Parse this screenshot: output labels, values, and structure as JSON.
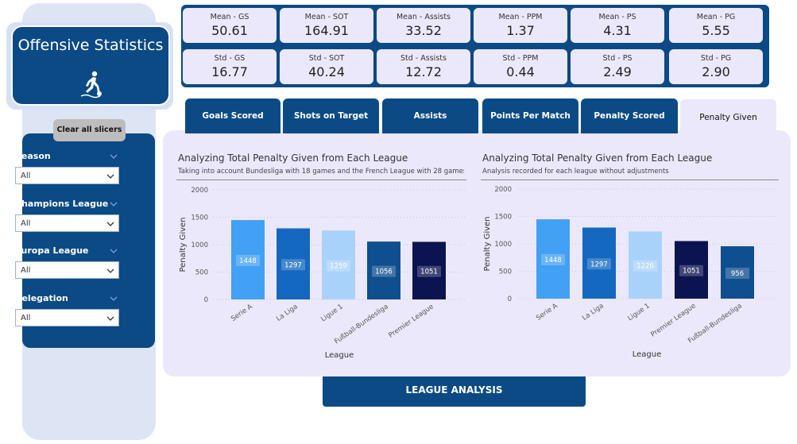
{
  "sidebar": {
    "title": "Offensive Statistics",
    "title_icon": "soccer-player-icon",
    "clear_button": "Clear all slicers",
    "slicers": [
      {
        "label": "Season",
        "value": "All"
      },
      {
        "label": "Champions League",
        "value": "All"
      },
      {
        "label": "Europa League",
        "value": "All"
      },
      {
        "label": "Relegation",
        "value": "All"
      }
    ]
  },
  "kpis": {
    "means": [
      {
        "label": "Mean - GS",
        "value": "50.61"
      },
      {
        "label": "Mean - SOT",
        "value": "164.91"
      },
      {
        "label": "Mean - Assists",
        "value": "33.52"
      },
      {
        "label": "Mean - PPM",
        "value": "1.37"
      },
      {
        "label": "Mean - PS",
        "value": "4.31"
      },
      {
        "label": "Mean - PG",
        "value": "5.55"
      }
    ],
    "stds": [
      {
        "label": "Std - GS",
        "value": "16.77"
      },
      {
        "label": "Std - SOT",
        "value": "40.24"
      },
      {
        "label": "Std - Assists",
        "value": "12.72"
      },
      {
        "label": "Std - PPM",
        "value": "0.44"
      },
      {
        "label": "Std - PS",
        "value": "2.49"
      },
      {
        "label": "Std - PG",
        "value": "2.90"
      }
    ]
  },
  "tabs": [
    {
      "label": "Goals Scored",
      "active": false
    },
    {
      "label": "Shots on Target",
      "active": false
    },
    {
      "label": "Assists",
      "active": false
    },
    {
      "label": "Points Per Match",
      "active": false
    },
    {
      "label": "Penalty Scored",
      "active": false
    },
    {
      "label": "Penalty Given",
      "active": true
    }
  ],
  "bottom_button": "LEAGUE ANALYSIS",
  "colors": {
    "navy": "#0b4a84",
    "lavender": "#ece8fc"
  },
  "chart_data": [
    {
      "type": "bar",
      "title": "Analyzing Total Penalty Given from Each League",
      "subtitle": "Taking into account Bundesliga with 18 games and the French League with 28 games...",
      "xlabel": "League",
      "ylabel": "Penalty Given",
      "ylim": [
        0,
        2000
      ],
      "yticks": [
        0,
        500,
        1000,
        1500,
        2000
      ],
      "categories": [
        "Serie A",
        "La Liga",
        "Ligue 1",
        "Fußball-Bundesliga",
        "Premier League"
      ],
      "values": [
        1448,
        1297,
        1259,
        1056,
        1051
      ],
      "bar_colors": [
        "#42a0f5",
        "#1468c0",
        "#a9d2fb",
        "#0f4f8f",
        "#0b1450"
      ],
      "grid": true
    },
    {
      "type": "bar",
      "title": "Analyzing Total Penalty Given from Each League",
      "subtitle": "Analysis recorded for each league without adjustments",
      "xlabel": "League",
      "ylabel": "Penalty Given",
      "ylim": [
        0,
        2000
      ],
      "yticks": [
        0,
        500,
        1000,
        1500,
        2000
      ],
      "categories": [
        "Serie A",
        "La Liga",
        "Ligue 1",
        "Premier League",
        "Fußball-Bundesliga"
      ],
      "values": [
        1448,
        1297,
        1226,
        1051,
        956
      ],
      "bar_colors": [
        "#42a0f5",
        "#1468c0",
        "#a9d2fb",
        "#0b1450",
        "#0f4f8f"
      ],
      "grid": true
    }
  ]
}
